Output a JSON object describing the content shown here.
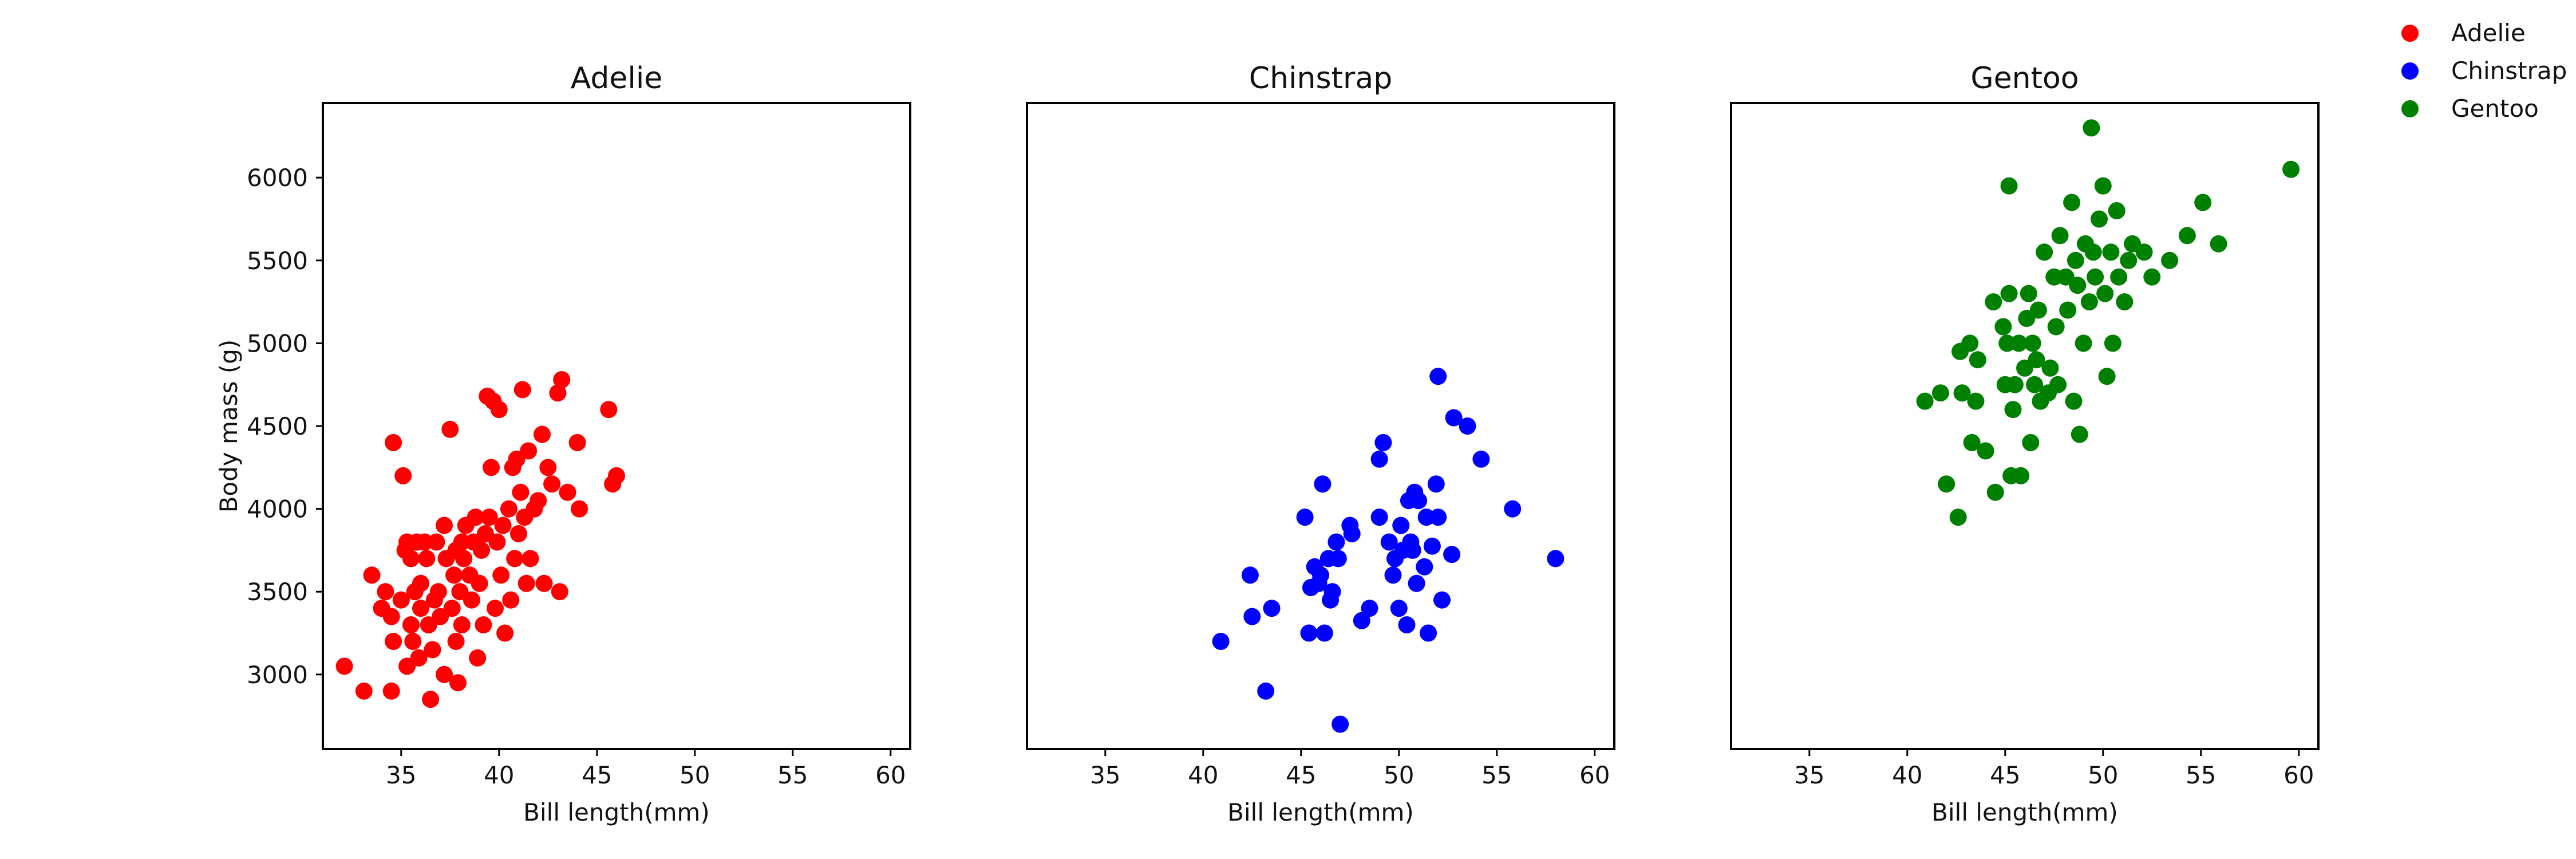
{
  "chart_data": {
    "type": "scatter",
    "xlabel": "Bill length(mm)",
    "ylabel": "Body mass (g)",
    "xlim": [
      31,
      61
    ],
    "ylim": [
      2550,
      6450
    ],
    "xticks": [
      35,
      40,
      45,
      50,
      55,
      60
    ],
    "yticks": [
      3000,
      3500,
      4000,
      4500,
      5000,
      5500,
      6000
    ],
    "legend": {
      "position": "top-right",
      "entries": [
        {
          "label": "Adelie",
          "color": "#ff0000"
        },
        {
          "label": "Chinstrap",
          "color": "#0000ff"
        },
        {
          "label": "Gentoo",
          "color": "#008000"
        }
      ]
    },
    "panels": [
      {
        "title": "Adelie",
        "color": "#ff0000",
        "points": [
          [
            32.1,
            3050
          ],
          [
            33.1,
            2900
          ],
          [
            33.5,
            3600
          ],
          [
            34.0,
            3400
          ],
          [
            34.2,
            3500
          ],
          [
            34.5,
            3350
          ],
          [
            34.6,
            4400
          ],
          [
            34.6,
            3200
          ],
          [
            34.5,
            2900
          ],
          [
            35.0,
            3450
          ],
          [
            35.1,
            4200
          ],
          [
            35.2,
            3750
          ],
          [
            35.3,
            3800
          ],
          [
            35.3,
            3050
          ],
          [
            35.5,
            3700
          ],
          [
            35.5,
            3300
          ],
          [
            35.6,
            3200
          ],
          [
            35.7,
            3500
          ],
          [
            35.8,
            3800
          ],
          [
            35.9,
            3100
          ],
          [
            36.0,
            3550
          ],
          [
            36.0,
            3400
          ],
          [
            36.2,
            3800
          ],
          [
            36.3,
            3700
          ],
          [
            36.4,
            3300
          ],
          [
            36.5,
            2850
          ],
          [
            36.6,
            3150
          ],
          [
            36.7,
            3450
          ],
          [
            36.8,
            3800
          ],
          [
            36.9,
            3500
          ],
          [
            37.0,
            3350
          ],
          [
            37.2,
            3900
          ],
          [
            37.2,
            3000
          ],
          [
            37.3,
            3700
          ],
          [
            37.5,
            4480
          ],
          [
            37.6,
            3400
          ],
          [
            37.7,
            3600
          ],
          [
            37.8,
            3750
          ],
          [
            37.8,
            3200
          ],
          [
            37.9,
            2950
          ],
          [
            38.0,
            3500
          ],
          [
            38.1,
            3800
          ],
          [
            38.1,
            3300
          ],
          [
            38.2,
            3700
          ],
          [
            38.3,
            3900
          ],
          [
            38.5,
            3600
          ],
          [
            38.6,
            3450
          ],
          [
            38.7,
            3800
          ],
          [
            38.8,
            3950
          ],
          [
            38.9,
            3100
          ],
          [
            39.0,
            3550
          ],
          [
            39.1,
            3750
          ],
          [
            39.2,
            3300
          ],
          [
            39.3,
            3850
          ],
          [
            39.4,
            4680
          ],
          [
            39.5,
            3950
          ],
          [
            39.6,
            4250
          ],
          [
            39.7,
            4650
          ],
          [
            39.8,
            3400
          ],
          [
            39.9,
            3800
          ],
          [
            40.0,
            4600
          ],
          [
            40.1,
            3600
          ],
          [
            40.2,
            3900
          ],
          [
            40.3,
            3250
          ],
          [
            40.5,
            4000
          ],
          [
            40.6,
            3450
          ],
          [
            40.7,
            4250
          ],
          [
            40.8,
            3700
          ],
          [
            40.9,
            4300
          ],
          [
            41.0,
            3850
          ],
          [
            41.1,
            4100
          ],
          [
            41.2,
            4720
          ],
          [
            41.3,
            3950
          ],
          [
            41.4,
            3550
          ],
          [
            41.5,
            4350
          ],
          [
            41.6,
            3700
          ],
          [
            41.8,
            4000
          ],
          [
            42.0,
            4050
          ],
          [
            42.2,
            4450
          ],
          [
            42.3,
            3550
          ],
          [
            42.5,
            4250
          ],
          [
            42.7,
            4150
          ],
          [
            43.0,
            4700
          ],
          [
            43.1,
            3500
          ],
          [
            43.2,
            4780
          ],
          [
            43.5,
            4100
          ],
          [
            44.0,
            4400
          ],
          [
            44.1,
            4000
          ],
          [
            45.6,
            4600
          ],
          [
            45.8,
            4150
          ],
          [
            46.0,
            4200
          ]
        ]
      },
      {
        "title": "Chinstrap",
        "color": "#0000ff",
        "points": [
          [
            40.9,
            3200
          ],
          [
            42.4,
            3600
          ],
          [
            42.5,
            3350
          ],
          [
            43.2,
            2900
          ],
          [
            43.5,
            3400
          ],
          [
            45.2,
            3950
          ],
          [
            45.4,
            3250
          ],
          [
            45.5,
            3525
          ],
          [
            45.7,
            3650
          ],
          [
            45.9,
            3550
          ],
          [
            46.0,
            3600
          ],
          [
            46.1,
            4150
          ],
          [
            46.2,
            3250
          ],
          [
            46.4,
            3700
          ],
          [
            46.5,
            3450
          ],
          [
            46.6,
            3500
          ],
          [
            46.8,
            3800
          ],
          [
            46.9,
            3700
          ],
          [
            47.0,
            2700
          ],
          [
            47.5,
            3900
          ],
          [
            47.6,
            3850
          ],
          [
            48.1,
            3325
          ],
          [
            48.5,
            3400
          ],
          [
            49.0,
            3950
          ],
          [
            49.0,
            4300
          ],
          [
            49.2,
            4400
          ],
          [
            49.5,
            3800
          ],
          [
            49.7,
            3600
          ],
          [
            49.8,
            3700
          ],
          [
            50.0,
            3400
          ],
          [
            50.1,
            3900
          ],
          [
            50.2,
            3750
          ],
          [
            50.4,
            3300
          ],
          [
            50.5,
            4050
          ],
          [
            50.6,
            3800
          ],
          [
            50.7,
            3750
          ],
          [
            50.8,
            4100
          ],
          [
            50.9,
            3550
          ],
          [
            51.0,
            4050
          ],
          [
            51.3,
            3650
          ],
          [
            51.4,
            3950
          ],
          [
            51.5,
            3250
          ],
          [
            51.7,
            3775
          ],
          [
            51.9,
            4150
          ],
          [
            52.0,
            4800
          ],
          [
            52.0,
            3950
          ],
          [
            52.2,
            3450
          ],
          [
            52.7,
            3725
          ],
          [
            52.8,
            4550
          ],
          [
            53.5,
            4500
          ],
          [
            54.2,
            4300
          ],
          [
            55.8,
            4000
          ],
          [
            58.0,
            3700
          ]
        ]
      },
      {
        "title": "Gentoo",
        "color": "#008000",
        "points": [
          [
            40.9,
            4650
          ],
          [
            41.7,
            4700
          ],
          [
            42.0,
            4150
          ],
          [
            42.6,
            3950
          ],
          [
            42.7,
            4950
          ],
          [
            42.8,
            4700
          ],
          [
            43.2,
            5000
          ],
          [
            43.3,
            4400
          ],
          [
            43.5,
            4650
          ],
          [
            43.6,
            4900
          ],
          [
            44.0,
            4350
          ],
          [
            44.4,
            5250
          ],
          [
            44.5,
            4100
          ],
          [
            44.9,
            5100
          ],
          [
            45.0,
            4750
          ],
          [
            45.1,
            5000
          ],
          [
            45.2,
            5300
          ],
          [
            45.2,
            5950
          ],
          [
            45.3,
            4200
          ],
          [
            45.4,
            4600
          ],
          [
            45.5,
            4750
          ],
          [
            45.7,
            5000
          ],
          [
            45.8,
            4200
          ],
          [
            46.0,
            4850
          ],
          [
            46.1,
            5150
          ],
          [
            46.2,
            5300
          ],
          [
            46.3,
            4400
          ],
          [
            46.4,
            5000
          ],
          [
            46.5,
            4750
          ],
          [
            46.6,
            4900
          ],
          [
            46.7,
            5200
          ],
          [
            46.8,
            4650
          ],
          [
            47.0,
            5550
          ],
          [
            47.2,
            4700
          ],
          [
            47.3,
            4850
          ],
          [
            47.5,
            5400
          ],
          [
            47.6,
            5100
          ],
          [
            47.7,
            4750
          ],
          [
            47.8,
            5650
          ],
          [
            48.1,
            5400
          ],
          [
            48.2,
            5200
          ],
          [
            48.4,
            5850
          ],
          [
            48.5,
            4650
          ],
          [
            48.6,
            5500
          ],
          [
            48.7,
            5350
          ],
          [
            48.8,
            4450
          ],
          [
            49.0,
            5000
          ],
          [
            49.1,
            5600
          ],
          [
            49.3,
            5250
          ],
          [
            49.4,
            6300
          ],
          [
            49.5,
            5550
          ],
          [
            49.6,
            5400
          ],
          [
            49.8,
            5750
          ],
          [
            50.0,
            5950
          ],
          [
            50.1,
            5300
          ],
          [
            50.2,
            4800
          ],
          [
            50.4,
            5550
          ],
          [
            50.5,
            5000
          ],
          [
            50.7,
            5800
          ],
          [
            50.8,
            5400
          ],
          [
            51.1,
            5250
          ],
          [
            51.3,
            5500
          ],
          [
            51.5,
            5600
          ],
          [
            52.1,
            5550
          ],
          [
            52.5,
            5400
          ],
          [
            53.4,
            5500
          ],
          [
            54.3,
            5650
          ],
          [
            55.1,
            5850
          ],
          [
            55.9,
            5600
          ],
          [
            59.6,
            6050
          ]
        ]
      }
    ]
  }
}
